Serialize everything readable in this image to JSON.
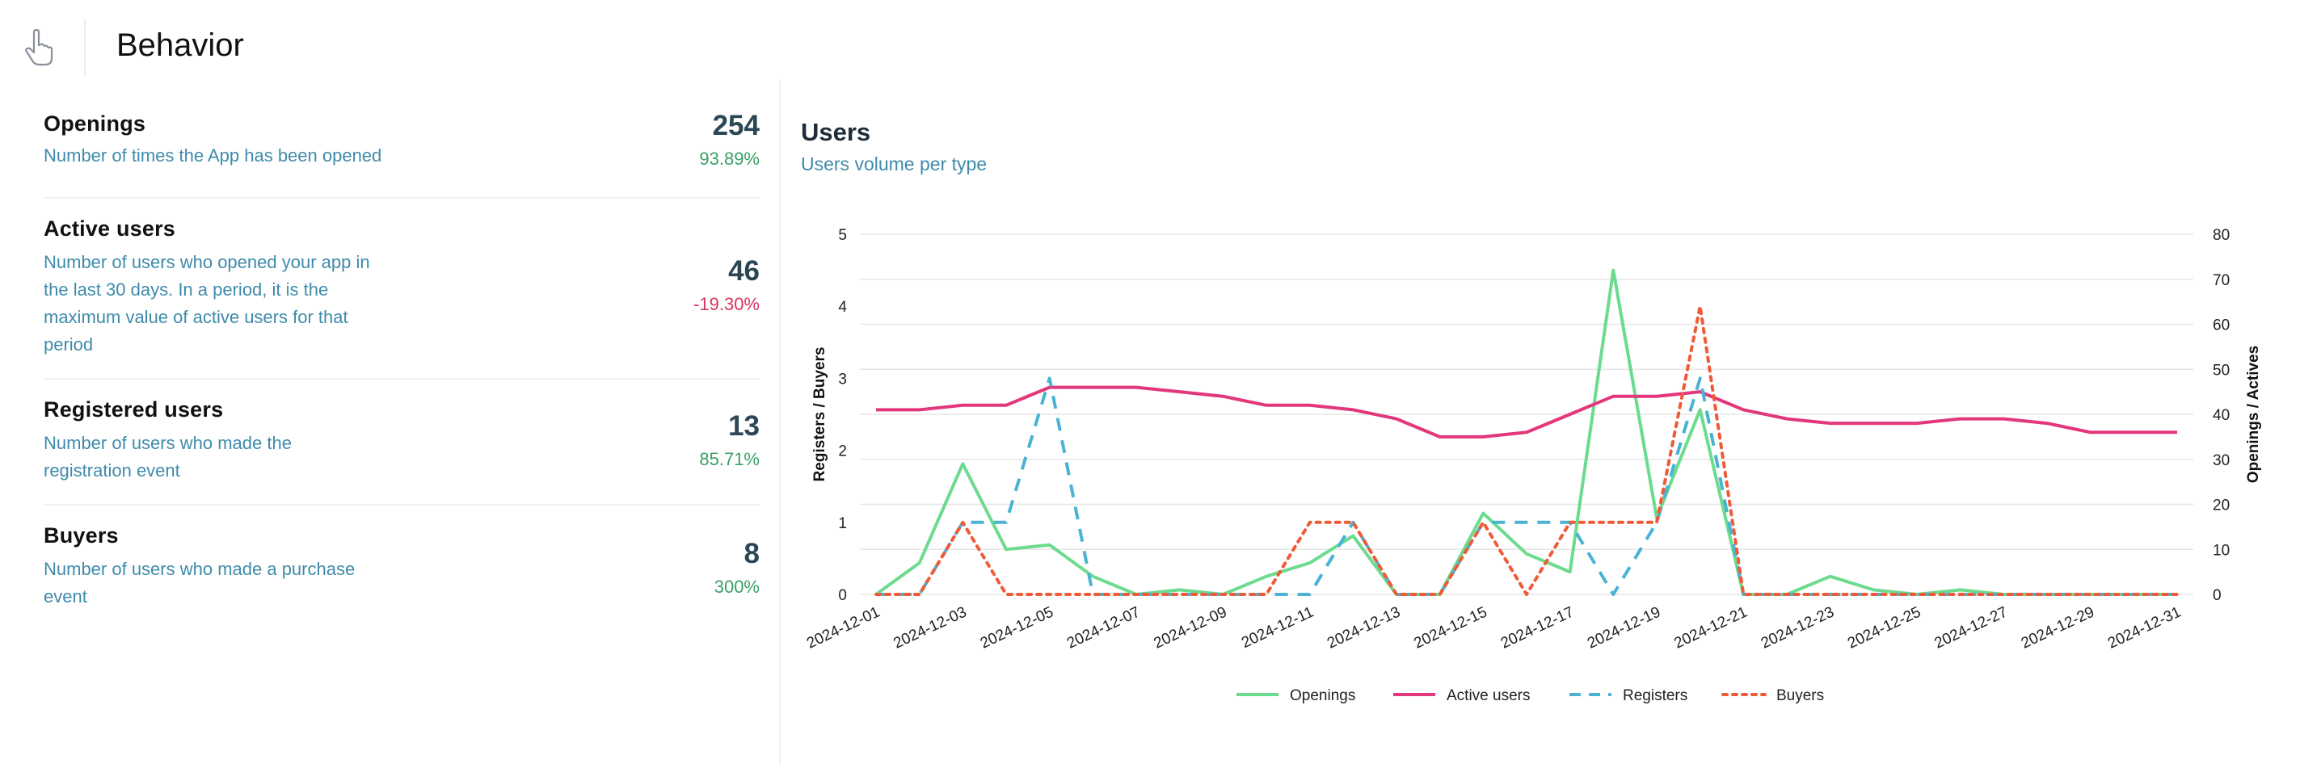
{
  "header": {
    "title": "Behavior",
    "icon": "hand-pointer-icon"
  },
  "metrics": [
    {
      "name": "Openings",
      "desc": "Number of times the App has been opened",
      "value": "254",
      "change": "93.89%",
      "trend": "positive"
    },
    {
      "name": "Active users",
      "desc": "Number of users who opened your app in the last 30 days. In a period, it is the maximum value of active users for that period",
      "value": "46",
      "change": "-19.30%",
      "trend": "negative"
    },
    {
      "name": "Registered users",
      "desc": "Number of users who made the registration event",
      "value": "13",
      "change": "85.71%",
      "trend": "positive"
    },
    {
      "name": "Buyers",
      "desc": "Number of users who made a purchase event",
      "value": "8",
      "change": "300%",
      "trend": "positive"
    }
  ],
  "colors": {
    "openings": "#6ddb8e",
    "active_users": "#e2377b",
    "registers": "#4ab3d4",
    "buyers": "#ef5b37"
  },
  "chart_data": {
    "type": "line",
    "title": "Users",
    "subtitle": "Users volume per type",
    "ylabel_left": "Registers / Buyers",
    "ylabel_right": "Openings / Actives",
    "ylim_left": [
      0,
      5
    ],
    "ylim_right": [
      0,
      80
    ],
    "yticks_left": [
      0,
      1,
      2,
      3,
      4,
      5
    ],
    "yticks_right": [
      0,
      10,
      20,
      30,
      40,
      50,
      60,
      70,
      80
    ],
    "grid": true,
    "legend": "bottom",
    "x": [
      "2024-12-01",
      "2024-12-02",
      "2024-12-03",
      "2024-12-04",
      "2024-12-05",
      "2024-12-06",
      "2024-12-07",
      "2024-12-08",
      "2024-12-09",
      "2024-12-10",
      "2024-12-11",
      "2024-12-12",
      "2024-12-13",
      "2024-12-14",
      "2024-12-15",
      "2024-12-16",
      "2024-12-17",
      "2024-12-18",
      "2024-12-19",
      "2024-12-20",
      "2024-12-21",
      "2024-12-22",
      "2024-12-23",
      "2024-12-24",
      "2024-12-25",
      "2024-12-26",
      "2024-12-27",
      "2024-12-28",
      "2024-12-29",
      "2024-12-30",
      "2024-12-31"
    ],
    "xtick_labels": [
      "2024-12-01",
      "2024-12-03",
      "2024-12-05",
      "2024-12-07",
      "2024-12-09",
      "2024-12-11",
      "2024-12-13",
      "2024-12-15",
      "2024-12-17",
      "2024-12-19",
      "2024-12-21",
      "2024-12-23",
      "2024-12-25",
      "2024-12-27",
      "2024-12-29",
      "2024-12-31"
    ],
    "series": [
      {
        "name": "Openings",
        "axis": "right",
        "style": "solid",
        "values": [
          0,
          7,
          29,
          10,
          11,
          4,
          0,
          1,
          0,
          4,
          7,
          13,
          0,
          0,
          18,
          9,
          5,
          72,
          17,
          41,
          0,
          0,
          4,
          1,
          0,
          1,
          0,
          0,
          0,
          0,
          0
        ]
      },
      {
        "name": "Active users",
        "axis": "right",
        "style": "solid",
        "values": [
          41,
          41,
          42,
          42,
          46,
          46,
          46,
          45,
          44,
          42,
          42,
          41,
          39,
          35,
          35,
          36,
          40,
          44,
          44,
          45,
          41,
          39,
          38,
          38,
          38,
          39,
          39,
          38,
          36,
          36,
          36
        ]
      },
      {
        "name": "Registers",
        "axis": "left",
        "style": "dashed",
        "values": [
          0,
          0,
          1,
          1,
          3,
          0,
          0,
          0,
          0,
          0,
          0,
          1,
          0,
          0,
          1,
          1,
          1,
          0,
          1,
          3,
          0,
          0,
          0,
          0,
          0,
          0,
          0,
          0,
          0,
          0,
          0
        ]
      },
      {
        "name": "Buyers",
        "axis": "left",
        "style": "dotted",
        "values": [
          0,
          0,
          1,
          0,
          0,
          0,
          0,
          0,
          0,
          0,
          1,
          1,
          0,
          0,
          1,
          0,
          1,
          1,
          1,
          4,
          0,
          0,
          0,
          0,
          0,
          0,
          0,
          0,
          0,
          0,
          0
        ]
      }
    ]
  }
}
